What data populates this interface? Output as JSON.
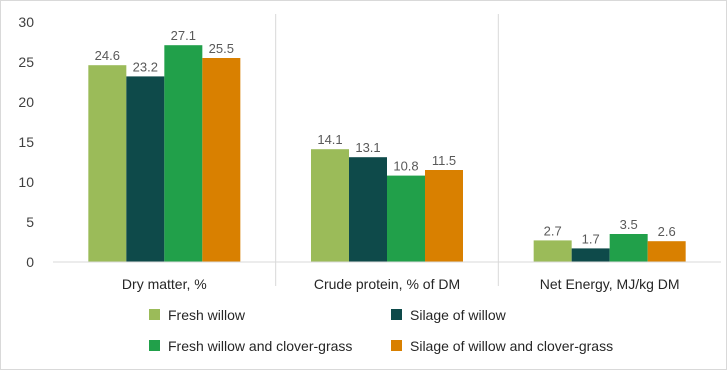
{
  "chart_data": {
    "type": "bar",
    "categories": [
      "Dry matter, %",
      "Crude protein, % of DM",
      "Net Energy, MJ/kg DM"
    ],
    "series": [
      {
        "name": "Fresh willow",
        "values": [
          24.6,
          14.1,
          2.7
        ],
        "color": "#9bbb59"
      },
      {
        "name": "Silage of willow",
        "values": [
          23.2,
          13.1,
          1.7
        ],
        "color": "#0e4a4a"
      },
      {
        "name": "Fresh willow and clover-grass",
        "values": [
          27.1,
          10.8,
          3.5
        ],
        "color": "#21a04a"
      },
      {
        "name": "Silage of willow and clover-grass",
        "values": [
          25.5,
          11.5,
          2.6
        ],
        "color": "#d98000"
      }
    ],
    "data_labels": [
      [
        "24.6",
        "23.2",
        "27.1",
        "25.5"
      ],
      [
        "14.1",
        "13.1",
        "10.8",
        "11.5"
      ],
      [
        "2.7",
        "1.7",
        "3.5",
        "2.6"
      ]
    ],
    "yticks": [
      "0",
      "5",
      "10",
      "15",
      "20",
      "25",
      "30"
    ],
    "ylim": [
      0,
      30
    ],
    "grid": "vertical category separators",
    "legend_placement": "bottom"
  }
}
